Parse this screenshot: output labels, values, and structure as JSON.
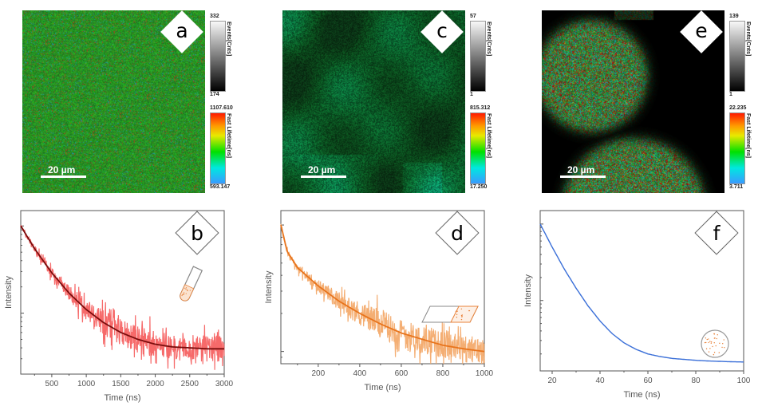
{
  "panels": {
    "a": {
      "label": "a",
      "scalebar": "20 µm",
      "events_title": "Events[Cnts]",
      "events_max": "332",
      "events_min": "174",
      "lifetime_title": "Fast Lifetime[ns]",
      "lifetime_max": "1107.610",
      "lifetime_min": "593.147"
    },
    "c": {
      "label": "c",
      "scalebar": "20 µm",
      "events_title": "Events[Cnts]",
      "events_max": "57",
      "events_min": "1",
      "lifetime_title": "Fast Lifetime[ns]",
      "lifetime_max": "815.312",
      "lifetime_min": "17.250"
    },
    "e": {
      "label": "e",
      "scalebar": "20 µm",
      "events_title": "Events[Cnts]",
      "events_max": "139",
      "events_min": "1",
      "lifetime_title": "Fast Lifetime[ns]",
      "lifetime_max": "22.235",
      "lifetime_min": "3.711"
    }
  },
  "colors": {
    "b_data": "#f55a5a",
    "b_fit": "#7a0c0c",
    "d_data": "#f3a564",
    "d_fit": "#e8741c",
    "f_data": "#3a6fd8",
    "sample_icon": "#e8823a",
    "icon_outline": "#888888"
  },
  "chart_data": [
    {
      "id": "b",
      "type": "line",
      "label": "b",
      "title": "",
      "xlabel": "Time (ns)",
      "ylabel": "Intensity",
      "xlim": [
        50,
        3000
      ],
      "xticks": [
        500,
        1000,
        1500,
        2000,
        2500,
        3000
      ],
      "yscale": "log",
      "ylim_relative": [
        0.02,
        1.5
      ],
      "sample_icon": "test-tube",
      "series": [
        {
          "name": "data",
          "style": "noisy",
          "x": [
            50,
            250,
            500,
            750,
            1000,
            1250,
            1500,
            1750,
            2000,
            2250,
            2500,
            2750,
            3000
          ],
          "y": [
            1.0,
            0.55,
            0.29,
            0.17,
            0.11,
            0.078,
            0.06,
            0.05,
            0.044,
            0.041,
            0.04,
            0.039,
            0.039
          ]
        },
        {
          "name": "fit",
          "style": "line",
          "x": [
            50,
            250,
            500,
            750,
            1000,
            1250,
            1500,
            1750,
            2000,
            2250,
            2500,
            2750,
            3000
          ],
          "y": [
            1.0,
            0.55,
            0.29,
            0.17,
            0.11,
            0.078,
            0.06,
            0.05,
            0.044,
            0.041,
            0.04,
            0.039,
            0.039
          ]
        }
      ]
    },
    {
      "id": "d",
      "type": "line",
      "label": "d",
      "title": "",
      "xlabel": "Time (ns)",
      "ylabel": "Intensity",
      "xlim": [
        20,
        1000
      ],
      "xticks": [
        200,
        400,
        600,
        800,
        1000
      ],
      "yscale": "log",
      "ylim_relative": [
        0.08,
        1.3
      ],
      "sample_icon": "glass-slide",
      "series": [
        {
          "name": "data",
          "style": "noisy",
          "x": [
            20,
            50,
            100,
            200,
            300,
            400,
            500,
            600,
            700,
            800,
            900,
            1000
          ],
          "y": [
            1.0,
            0.62,
            0.46,
            0.33,
            0.25,
            0.2,
            0.165,
            0.14,
            0.125,
            0.112,
            0.105,
            0.1
          ]
        },
        {
          "name": "fit",
          "style": "line",
          "x": [
            20,
            50,
            100,
            200,
            300,
            400,
            500,
            600,
            700,
            800,
            900,
            1000
          ],
          "y": [
            1.0,
            0.62,
            0.46,
            0.33,
            0.25,
            0.2,
            0.165,
            0.14,
            0.125,
            0.112,
            0.105,
            0.1
          ]
        }
      ]
    },
    {
      "id": "f",
      "type": "line",
      "label": "f",
      "title": "",
      "xlabel": "Time (ns)",
      "ylabel": "Intensity",
      "xlim": [
        15,
        100
      ],
      "xticks": [
        20,
        40,
        60,
        80,
        100
      ],
      "yscale": "log",
      "ylim_relative": [
        0.012,
        1.5
      ],
      "sample_icon": "bead",
      "series": [
        {
          "name": "data",
          "style": "line",
          "x": [
            15,
            20,
            25,
            30,
            35,
            40,
            45,
            50,
            55,
            60,
            65,
            70,
            75,
            80,
            85,
            90,
            95,
            100
          ],
          "y": [
            1.0,
            0.5,
            0.26,
            0.145,
            0.085,
            0.054,
            0.037,
            0.028,
            0.023,
            0.02,
            0.0185,
            0.0175,
            0.017,
            0.0165,
            0.0162,
            0.016,
            0.0158,
            0.0157
          ]
        }
      ]
    }
  ]
}
